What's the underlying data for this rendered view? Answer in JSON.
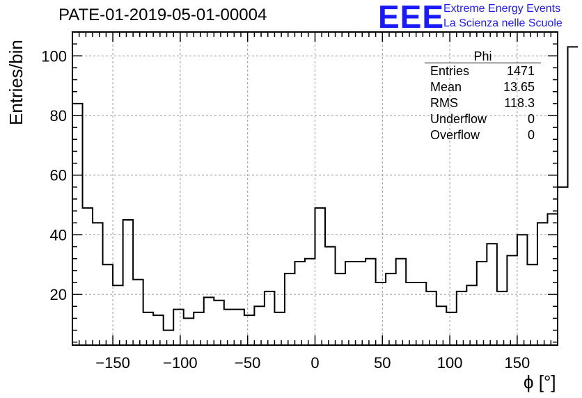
{
  "header": {
    "title": "PATE-01-2019-05-01-00004",
    "logo_text": "EEE",
    "logo_line1": "Extreme Energy Events",
    "logo_line2": "La Scienza nelle Scuole"
  },
  "stats_box": {
    "title": "Phi",
    "rows": [
      {
        "label": "Entries",
        "value": "1471"
      },
      {
        "label": "Mean",
        "value": "13.65"
      },
      {
        "label": "RMS",
        "value": "118.3"
      },
      {
        "label": "Underflow",
        "value": "0"
      },
      {
        "label": "Overflow",
        "value": "0"
      }
    ]
  },
  "colors": {
    "line": "#000000",
    "grid": "#999999",
    "logo": "#1a1aff"
  },
  "chart_data": {
    "type": "histogram",
    "title": "PATE-01-2019-05-01-00004",
    "xlabel": "ϕ [°]",
    "ylabel": "Entries/bin",
    "xlim": [
      -180,
      180
    ],
    "ylim": [
      3,
      108
    ],
    "bin_width": 7.5,
    "bin_edges_start": -180,
    "values": [
      84,
      49,
      44,
      30,
      23,
      45,
      25,
      14,
      13,
      8,
      15,
      12,
      14,
      19,
      18,
      15,
      15,
      13,
      16,
      21,
      14,
      27,
      31,
      32,
      49,
      36,
      27,
      31,
      31,
      32,
      24,
      27,
      32,
      24,
      24,
      21,
      16,
      14,
      21,
      23,
      31,
      37,
      21,
      33,
      40,
      30,
      44,
      47,
      56,
      103
    ],
    "xticks": [
      -150,
      -100,
      -50,
      0,
      50,
      100,
      150
    ],
    "xtick_labels": [
      "−150",
      "−100",
      "−50",
      "0",
      "50",
      "100",
      "150"
    ],
    "yticks": [
      20,
      40,
      60,
      80,
      100
    ],
    "ytick_labels": [
      "20",
      "40",
      "60",
      "80",
      "100"
    ],
    "grid": true
  }
}
